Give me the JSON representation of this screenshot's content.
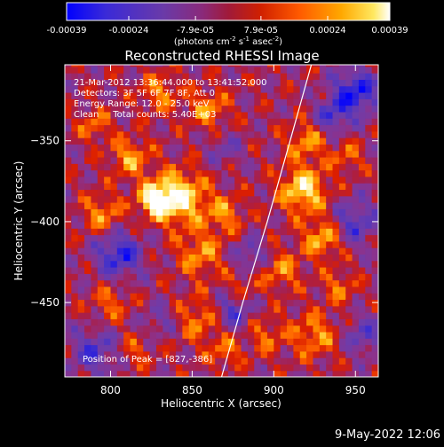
{
  "chart_data": {
    "type": "heatmap",
    "title": "Reconstructed RHESSI Image",
    "xlabel": "Heliocentric X (arcsec)",
    "ylabel": "Heliocentric Y (arcsec)",
    "xlim": [
      772,
      964
    ],
    "ylim": [
      -496,
      -303
    ],
    "xticks": [
      800,
      850,
      900,
      950
    ],
    "yticks": [
      -350,
      -400,
      -450
    ],
    "colorbar": {
      "unit_prefix": "(photons cm",
      "unit_exp1": "-2",
      "unit_mid": " s",
      "unit_exp2": "-1",
      "unit_mid2": " asec",
      "unit_exp3": "-2",
      "unit_suffix": ")",
      "range": [
        -0.00039,
        0.00039
      ],
      "ticks": [
        "-0.00039",
        "-0.00024",
        "-7.9e-05",
        "7.9e-05",
        "0.00024",
        "0.00039"
      ],
      "tick_values": [
        -0.00039,
        -0.00024,
        -7.9e-05,
        7.9e-05,
        0.00024,
        0.00039
      ]
    },
    "annotations": {
      "time": "21-Mar-2012 13:36:44.000 to 13:41:52.000",
      "detectors": "Detectors: 3F 5F 6F 7F 8F, Att 0",
      "energy": "Energy Range: 12.0 - 25.0 keV",
      "method": "Clean     Total counts: 5.40E+03",
      "peak": "Position of Peak = [827,-386]"
    },
    "limb": [
      [
        868,
        -496
      ],
      [
        881,
        -450
      ],
      [
        896,
        -400
      ],
      [
        910,
        -350
      ],
      [
        923,
        -303
      ]
    ],
    "footer": "9-May-2022 12:06",
    "grid": false,
    "colors": {
      "background": "#000000",
      "foreground": "#ffffff",
      "colormap": [
        "#0000ff",
        "#6a4cbf",
        "#8a3a9e",
        "#b0204a",
        "#e02000",
        "#ff6a00",
        "#ffb000",
        "#ffe060",
        "#ffffff"
      ]
    }
  }
}
